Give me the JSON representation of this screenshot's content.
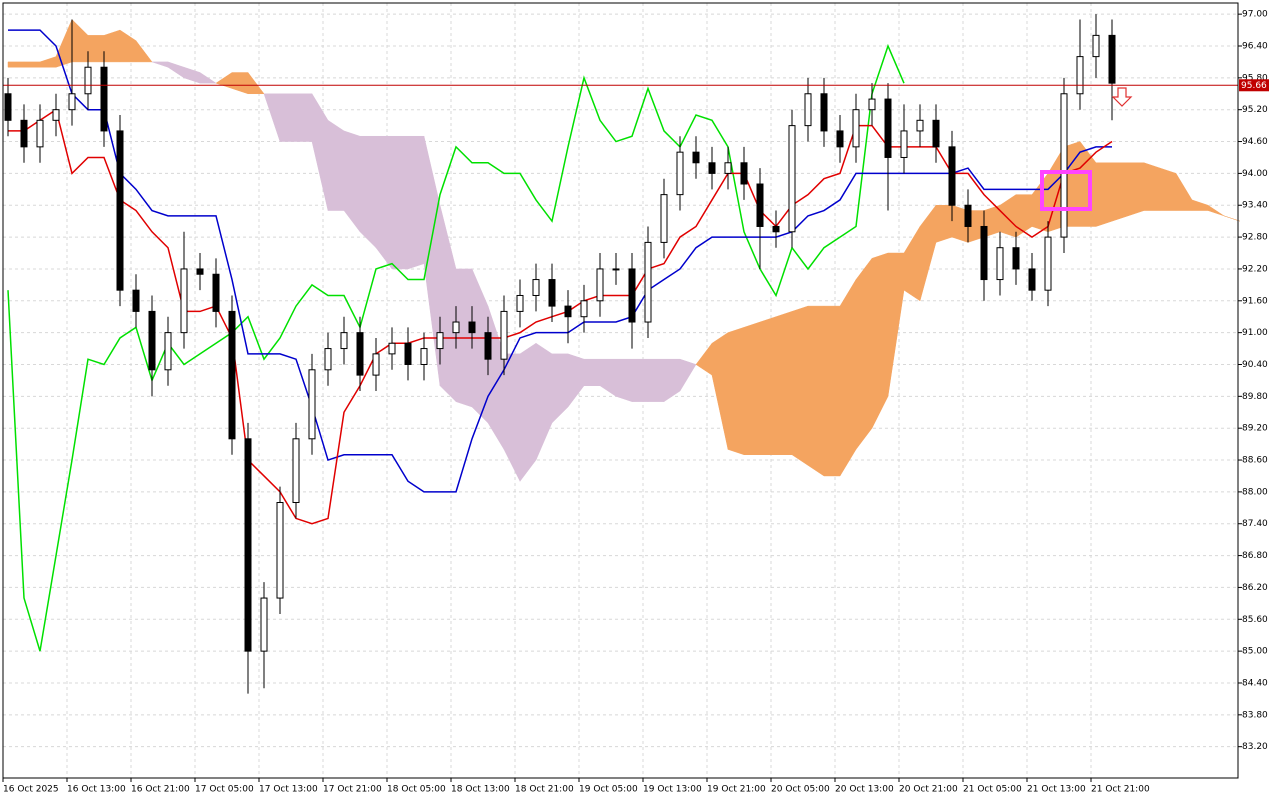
{
  "chart_data": {
    "type": "candlestick",
    "categories": [
      "16 Oct 2025",
      null,
      null,
      null,
      "16 Oct 13:00",
      null,
      null,
      null,
      "16 Oct 21:00",
      null,
      null,
      null,
      "17 Oct 05:00",
      null,
      null,
      null,
      "17 Oct 13:00",
      null,
      null,
      null,
      "17 Oct 21:00",
      null,
      null,
      null,
      "18 Oct 05:00",
      null,
      null,
      null,
      "18 Oct 13:00",
      null,
      null,
      null,
      "18 Oct 21:00",
      null,
      null,
      null,
      "19 Oct 05:00",
      null,
      null,
      null,
      "19 Oct 13:00",
      null,
      null,
      null,
      "19 Oct 21:00",
      null,
      null,
      null,
      "20 Oct 05:00",
      null,
      null,
      null,
      "20 Oct 13:00",
      null,
      null,
      null,
      "20 Oct 21:00",
      null,
      null,
      null,
      "21 Oct 05:00",
      null,
      null,
      null,
      "21 Oct 13:00",
      null,
      null,
      null,
      "21 Oct 21:00",
      null,
      null,
      null,
      null,
      null,
      null,
      null,
      null,
      null
    ],
    "open": [
      95.5,
      95.0,
      94.5,
      95.0,
      95.2,
      95.5,
      96.0,
      94.8,
      91.8,
      91.4,
      90.3,
      91.0,
      92.2,
      92.1,
      91.4,
      89.0,
      85.0,
      86.0,
      87.8,
      89.0,
      90.3,
      90.7,
      91.0,
      90.2,
      90.6,
      90.8,
      90.4,
      90.7,
      91.0,
      91.2,
      91.0,
      90.5,
      91.4,
      91.7,
      92.0,
      91.5,
      91.3,
      91.6,
      92.2,
      92.2,
      91.2,
      92.7,
      93.6,
      94.4,
      94.2,
      94.0,
      94.2,
      93.8,
      93.0,
      92.9,
      94.9,
      95.5,
      94.8,
      94.5,
      95.2,
      95.4,
      94.3,
      94.8,
      95.0,
      94.5,
      93.4,
      93.0,
      92.0,
      92.6,
      92.2,
      91.8,
      92.8,
      95.5,
      96.2,
      96.6,
      null,
      null,
      null,
      null,
      null,
      null,
      null,
      null
    ],
    "high": [
      95.8,
      95.3,
      95.3,
      95.5,
      96.9,
      96.3,
      96.3,
      95.1,
      92.1,
      91.7,
      91.3,
      92.9,
      92.5,
      92.4,
      91.7,
      89.3,
      86.3,
      88.1,
      89.3,
      90.6,
      91.0,
      91.3,
      91.3,
      90.9,
      91.1,
      91.1,
      91.0,
      91.3,
      91.5,
      91.5,
      91.3,
      91.7,
      92.0,
      92.3,
      92.3,
      91.8,
      91.9,
      92.5,
      92.5,
      92.5,
      93.0,
      93.9,
      94.7,
      94.7,
      94.5,
      94.5,
      94.5,
      94.1,
      93.3,
      95.2,
      95.8,
      95.8,
      95.1,
      95.5,
      95.7,
      95.7,
      95.3,
      95.3,
      95.3,
      94.8,
      93.7,
      93.3,
      92.9,
      92.9,
      92.5,
      93.1,
      95.8,
      96.9,
      97.0,
      96.9,
      null,
      null,
      null,
      null,
      null,
      null,
      null,
      null
    ],
    "low": [
      94.7,
      94.2,
      94.2,
      94.7,
      94.9,
      95.2,
      94.5,
      91.5,
      91.1,
      89.8,
      90.0,
      90.7,
      91.8,
      91.1,
      88.7,
      84.2,
      84.3,
      85.7,
      87.5,
      88.7,
      90.0,
      90.4,
      89.9,
      89.9,
      90.3,
      90.1,
      90.1,
      90.4,
      90.7,
      90.7,
      90.2,
      90.2,
      91.1,
      91.4,
      91.2,
      90.8,
      91.0,
      91.3,
      91.9,
      90.7,
      90.9,
      92.4,
      93.3,
      93.9,
      93.7,
      93.7,
      93.5,
      92.2,
      92.6,
      92.6,
      94.6,
      94.5,
      94.2,
      94.2,
      94.9,
      93.3,
      94.0,
      94.5,
      94.2,
      93.1,
      92.7,
      91.6,
      91.7,
      91.9,
      91.6,
      91.5,
      92.5,
      95.2,
      95.8,
      95.0,
      null,
      null,
      null,
      null,
      null,
      null,
      null,
      null
    ],
    "close": [
      95.0,
      94.5,
      95.0,
      95.2,
      95.5,
      96.0,
      94.8,
      91.8,
      91.4,
      90.3,
      91.0,
      92.2,
      92.1,
      91.4,
      89.0,
      85.0,
      86.0,
      87.8,
      89.0,
      90.3,
      90.7,
      91.0,
      90.2,
      90.6,
      90.8,
      90.4,
      90.7,
      91.0,
      91.2,
      91.0,
      90.5,
      91.4,
      91.7,
      92.0,
      91.5,
      91.3,
      91.6,
      92.2,
      92.2,
      91.2,
      92.7,
      93.6,
      94.4,
      94.2,
      94.0,
      94.2,
      93.8,
      93.0,
      92.9,
      94.9,
      95.5,
      94.8,
      94.5,
      95.2,
      95.4,
      94.3,
      94.8,
      95.0,
      94.5,
      93.4,
      93.0,
      92.0,
      92.6,
      92.2,
      91.8,
      92.8,
      95.5,
      96.2,
      96.6,
      95.7,
      null,
      null,
      null,
      null,
      null,
      null,
      null,
      null
    ],
    "span_a": {
      "color": "#f4a460",
      "values": [
        96.1,
        96.1,
        96.1,
        96.2,
        96.9,
        96.6,
        96.6,
        96.7,
        96.5,
        96.1,
        96.0,
        95.8,
        95.7,
        95.7,
        95.9,
        95.9,
        95.5,
        94.6,
        94.6,
        94.6,
        93.3,
        93.3,
        92.9,
        92.6,
        92.2,
        92.2,
        92.3,
        90.0,
        89.7,
        89.6,
        89.3,
        88.8,
        88.2,
        88.6,
        89.3,
        89.6,
        90.0,
        90.0,
        89.8,
        89.7,
        89.7,
        89.7,
        89.9,
        90.4,
        90.8,
        91.0,
        91.1,
        91.2,
        91.3,
        91.4,
        91.5,
        91.5,
        91.5,
        92.0,
        92.4,
        92.5,
        92.5,
        93.0,
        93.4,
        93.4,
        93.3,
        93.3,
        93.4,
        93.6,
        93.6,
        94.0,
        94.5,
        94.6,
        94.2,
        94.2,
        94.2,
        94.2,
        94.1,
        94.0,
        93.5,
        93.4,
        93.2,
        93.1
      ]
    },
    "span_b": {
      "color": "#d8bfd8",
      "values": [
        96.0,
        96.0,
        96.0,
        96.0,
        96.1,
        96.1,
        96.1,
        96.1,
        96.1,
        96.1,
        96.1,
        96.0,
        95.9,
        95.7,
        95.6,
        95.5,
        95.5,
        95.5,
        95.5,
        95.5,
        95.0,
        94.8,
        94.7,
        94.7,
        94.7,
        94.7,
        94.7,
        93.4,
        92.2,
        92.2,
        91.5,
        90.6,
        90.6,
        90.8,
        90.6,
        90.6,
        90.5,
        90.5,
        90.5,
        90.5,
        90.5,
        90.5,
        90.5,
        90.4,
        90.2,
        88.8,
        88.7,
        88.7,
        88.7,
        88.7,
        88.5,
        88.3,
        88.3,
        88.8,
        89.2,
        89.8,
        91.8,
        91.6,
        92.7,
        92.8,
        92.7,
        92.8,
        92.9,
        92.8,
        93.0,
        92.9,
        93.0,
        93.0,
        93.0,
        93.1,
        93.2,
        93.3,
        93.3,
        93.3,
        93.3,
        93.3,
        93.2,
        93.1
      ]
    },
    "lines": [
      {
        "color": "#00e000",
        "values": [
          91.8,
          86.0,
          85.0,
          86.8,
          88.6,
          90.5,
          90.4,
          90.9,
          91.1,
          90.1,
          90.8,
          90.4,
          90.6,
          90.8,
          91.0,
          91.3,
          90.5,
          90.9,
          91.5,
          91.9,
          91.7,
          91.7,
          91.1,
          92.2,
          92.3,
          92.0,
          92.0,
          93.6,
          94.5,
          94.2,
          94.2,
          94.0,
          94.0,
          93.5,
          93.1,
          94.5,
          95.8,
          95.0,
          94.6,
          94.7,
          95.6,
          94.8,
          94.5,
          95.1,
          95.0,
          94.5,
          92.9,
          92.2,
          91.7,
          92.6,
          92.2,
          92.6,
          92.8,
          93.0,
          95.5,
          96.4,
          95.7,
          null,
          null,
          null,
          null,
          null,
          null,
          null,
          null,
          null,
          null,
          null,
          null,
          null,
          null,
          null,
          null,
          null,
          null,
          null,
          null,
          null
        ]
      },
      {
        "color": "#0000cc",
        "values": [
          96.7,
          96.7,
          96.7,
          96.4,
          95.5,
          95.2,
          95.2,
          94.0,
          93.7,
          93.3,
          93.2,
          93.2,
          93.2,
          93.2,
          92.0,
          90.6,
          90.6,
          90.6,
          90.5,
          89.6,
          88.6,
          88.7,
          88.7,
          88.7,
          88.7,
          88.2,
          88.0,
          88.0,
          88.0,
          89.0,
          89.8,
          90.3,
          90.9,
          91.0,
          91.0,
          91.0,
          91.2,
          91.2,
          91.2,
          91.3,
          91.8,
          92.0,
          92.2,
          92.6,
          92.8,
          92.8,
          92.8,
          92.8,
          92.8,
          92.9,
          93.2,
          93.3,
          93.5,
          94.0,
          94.0,
          94.0,
          94.0,
          94.0,
          94.0,
          94.0,
          94.1,
          93.7,
          93.7,
          93.7,
          93.7,
          93.7,
          94.0,
          94.4,
          94.5,
          94.5,
          null,
          null,
          null,
          null,
          null,
          null,
          null,
          null
        ]
      },
      {
        "color": "#e00000",
        "values": [
          94.8,
          94.8,
          95.0,
          95.2,
          94.0,
          94.3,
          94.3,
          93.5,
          93.3,
          92.9,
          92.6,
          91.4,
          91.4,
          91.5,
          90.9,
          88.6,
          88.3,
          88.0,
          87.5,
          87.4,
          87.5,
          89.5,
          90.0,
          90.6,
          90.8,
          90.8,
          90.9,
          90.9,
          90.9,
          90.9,
          90.9,
          90.9,
          91.0,
          91.2,
          91.3,
          91.4,
          91.6,
          91.7,
          91.7,
          91.7,
          92.2,
          92.3,
          92.8,
          93.0,
          93.5,
          94.0,
          94.0,
          93.3,
          93.0,
          93.4,
          93.6,
          93.9,
          94.0,
          94.9,
          94.9,
          94.5,
          94.5,
          94.5,
          94.5,
          94.0,
          94.0,
          93.6,
          93.3,
          93.0,
          92.8,
          93.0,
          94.0,
          94.1,
          94.4,
          94.6,
          null,
          null,
          null,
          null,
          null,
          null,
          null,
          null
        ]
      }
    ],
    "current_price": 95.66,
    "ylim": [
      82.61,
      97.21
    ],
    "yticks": [
      {
        "value": 97.0,
        "label": "97.00"
      },
      {
        "value": 96.4,
        "label": "96.40"
      },
      {
        "value": 95.8,
        "label": "95.80"
      },
      {
        "value": 95.2,
        "label": "95.20"
      },
      {
        "value": 94.6,
        "label": "94.60"
      },
      {
        "value": 94.0,
        "label": "94.00"
      },
      {
        "value": 93.4,
        "label": "93.40"
      },
      {
        "value": 92.8,
        "label": "92.80"
      },
      {
        "value": 92.2,
        "label": "92.20"
      },
      {
        "value": 91.6,
        "label": "91.60"
      },
      {
        "value": 91.0,
        "label": "91.00"
      },
      {
        "value": 90.4,
        "label": "90.40"
      },
      {
        "value": 89.8,
        "label": "89.80"
      },
      {
        "value": 89.2,
        "label": "89.20"
      },
      {
        "value": 88.6,
        "label": "88.60"
      },
      {
        "value": 88.0,
        "label": "88.00"
      },
      {
        "value": 87.4,
        "label": "87.40"
      },
      {
        "value": 86.8,
        "label": "86.80"
      },
      {
        "value": 86.2,
        "label": "86.20"
      },
      {
        "value": 85.6,
        "label": "85.60"
      },
      {
        "value": 85.0,
        "label": "85.00"
      },
      {
        "value": 84.4,
        "label": "84.40"
      },
      {
        "value": 83.8,
        "label": "83.80"
      },
      {
        "value": 83.2,
        "label": "83.20"
      }
    ],
    "grid": true
  }
}
